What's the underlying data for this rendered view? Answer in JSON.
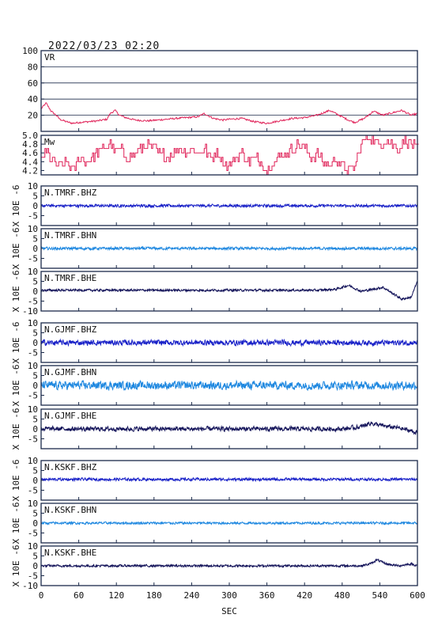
{
  "title": "2022/03/23 02:20",
  "xlabel": "SEC",
  "ylabel": "X 10E -6",
  "colors": {
    "vr": "#e0245a",
    "mw": "#e0245a",
    "bhz": "#1a22c8",
    "bhn": "#1f88e0",
    "bhe": "#14145a",
    "frame": "#1b2a4a"
  },
  "chart_data": {
    "type": "line",
    "x_range": [
      0,
      600
    ],
    "x_ticks": [
      0,
      60,
      120,
      180,
      240,
      300,
      360,
      420,
      480,
      540,
      600
    ],
    "panels": [
      {
        "name": "VR",
        "color_key": "vr",
        "ylim": [
          0,
          100
        ],
        "yticks": [
          20,
          40,
          60,
          80,
          100
        ],
        "ytick_labels": [
          "20",
          "40",
          "60",
          "80",
          "100"
        ],
        "grid": true,
        "x": [
          0,
          8,
          16,
          24,
          30,
          40,
          50,
          60,
          75,
          90,
          105,
          110,
          118,
          125,
          135,
          150,
          170,
          200,
          230,
          250,
          260,
          275,
          290,
          300,
          320,
          340,
          360,
          380,
          400,
          420,
          440,
          450,
          460,
          465,
          480,
          490,
          500,
          515,
          530,
          545,
          560,
          575,
          590,
          600
        ],
        "y": [
          28,
          35,
          25,
          20,
          15,
          12,
          10,
          11,
          12,
          13,
          15,
          22,
          26,
          20,
          17,
          14,
          13,
          15,
          17,
          18,
          22,
          16,
          14,
          15,
          16,
          12,
          10,
          13,
          16,
          17,
          20,
          23,
          26,
          24,
          18,
          14,
          11,
          16,
          25,
          20,
          23,
          26,
          20,
          22
        ]
      },
      {
        "name": "Mw",
        "color_key": "mw",
        "ylim": [
          4.1,
          5.0
        ],
        "yticks": [
          4.2,
          4.4,
          4.6,
          4.8,
          5.0
        ],
        "ytick_labels": [
          "4.2",
          "4.4",
          "4.6",
          "4.8",
          "5.0"
        ],
        "grid": false,
        "x": [
          0,
          10,
          20,
          30,
          40,
          50,
          55,
          60,
          70,
          80,
          90,
          100,
          110,
          120,
          125,
          130,
          140,
          150,
          160,
          170,
          180,
          190,
          200,
          210,
          220,
          230,
          240,
          250,
          260,
          270,
          280,
          290,
          300,
          310,
          320,
          330,
          340,
          350,
          360,
          370,
          380,
          390,
          400,
          410,
          420,
          430,
          440,
          450,
          460,
          470,
          480,
          490,
          500,
          510,
          515,
          520,
          530,
          540,
          550,
          560,
          570,
          580,
          590,
          600
        ],
        "y": [
          4.5,
          4.6,
          4.4,
          4.3,
          4.4,
          4.2,
          4.3,
          4.5,
          4.4,
          4.5,
          4.6,
          4.7,
          4.8,
          4.6,
          4.7,
          4.6,
          4.5,
          4.6,
          4.7,
          4.8,
          4.7,
          4.6,
          4.5,
          4.6,
          4.7,
          4.6,
          4.7,
          4.6,
          4.7,
          4.5,
          4.6,
          4.4,
          4.3,
          4.5,
          4.6,
          4.4,
          4.5,
          4.4,
          4.2,
          4.4,
          4.5,
          4.6,
          4.7,
          4.8,
          4.7,
          4.5,
          4.6,
          4.4,
          4.3,
          4.5,
          4.3,
          4.2,
          4.3,
          4.8,
          4.9,
          5.0,
          4.9,
          4.8,
          4.9,
          4.8,
          4.7,
          4.9,
          4.8,
          4.7
        ]
      },
      {
        "name": "N.TMRF.BHZ",
        "color_key": "bhz",
        "ylim": [
          -10,
          10
        ],
        "yticks": [
          -10,
          -5,
          0,
          5,
          10
        ],
        "ytick_labels": [
          "",
          "-5",
          "0",
          "5",
          "10"
        ],
        "noise": 0.6,
        "x": [
          0,
          600
        ],
        "y": [
          0,
          0
        ]
      },
      {
        "name": "N.TMRF.BHN",
        "color_key": "bhn",
        "ylim": [
          -10,
          10
        ],
        "yticks": [
          -10,
          -5,
          0,
          5,
          10
        ],
        "ytick_labels": [
          "",
          "-5",
          "0",
          "5",
          "10"
        ],
        "noise": 0.6,
        "x": [
          0,
          600
        ],
        "y": [
          0,
          0
        ]
      },
      {
        "name": "N.TMRF.BHE",
        "color_key": "bhe",
        "ylim": [
          -10,
          10
        ],
        "yticks": [
          -10,
          -5,
          0,
          5,
          10
        ],
        "ytick_labels": [
          "-10",
          "-5",
          "0",
          "5",
          "10"
        ],
        "noise": 0.5,
        "x": [
          0,
          440,
          470,
          490,
          510,
          530,
          545,
          560,
          575,
          590,
          600
        ],
        "y": [
          0.5,
          0.5,
          1,
          3,
          0,
          1,
          2,
          -1,
          -4,
          -3,
          5
        ]
      },
      {
        "name": "N.GJMF.BHZ",
        "color_key": "bhz",
        "ylim": [
          -10,
          10
        ],
        "yticks": [
          -10,
          -5,
          0,
          5,
          10
        ],
        "ytick_labels": [
          "",
          "-5",
          "0",
          "5",
          "10"
        ],
        "noise": 1.2,
        "x": [
          0,
          600
        ],
        "y": [
          0,
          0
        ]
      },
      {
        "name": "N.GJMF.BHN",
        "color_key": "bhn",
        "ylim": [
          -10,
          10
        ],
        "yticks": [
          -10,
          -5,
          0,
          5,
          10
        ],
        "ytick_labels": [
          "",
          "-5",
          "0",
          "5",
          "10"
        ],
        "noise": 1.8,
        "x": [
          0,
          600
        ],
        "y": [
          0,
          0
        ]
      },
      {
        "name": "N.GJMF.BHE",
        "color_key": "bhe",
        "ylim": [
          -10,
          10
        ],
        "yticks": [
          -10,
          -5,
          0,
          5,
          10
        ],
        "ytick_labels": [
          "",
          "-5",
          "0",
          "5",
          "10"
        ],
        "noise": 1.0,
        "x": [
          0,
          480,
          510,
          525,
          545,
          570,
          590,
          600
        ],
        "y": [
          0,
          0,
          1,
          3,
          1.5,
          0.5,
          -1,
          -2
        ]
      },
      {
        "name": "N.KSKF.BHZ",
        "color_key": "bhz",
        "ylim": [
          -10,
          10
        ],
        "yticks": [
          -10,
          -5,
          0,
          5,
          10
        ],
        "ytick_labels": [
          "",
          "-5",
          "0",
          "5",
          "10"
        ],
        "noise": 0.6,
        "x": [
          0,
          600
        ],
        "y": [
          0.5,
          0.5
        ]
      },
      {
        "name": "N.KSKF.BHN",
        "color_key": "bhn",
        "ylim": [
          -10,
          10
        ],
        "yticks": [
          -10,
          -5,
          0,
          5,
          10
        ],
        "ytick_labels": [
          "",
          "-5",
          "0",
          "5",
          "10"
        ],
        "noise": 0.5,
        "x": [
          0,
          600
        ],
        "y": [
          0,
          0
        ]
      },
      {
        "name": "N.KSKF.BHE",
        "color_key": "bhe",
        "ylim": [
          -10,
          10
        ],
        "yticks": [
          -10,
          -5,
          0,
          5,
          10
        ],
        "ytick_labels": [
          "-10",
          "-5",
          "0",
          "5",
          "10"
        ],
        "noise": 0.5,
        "x": [
          0,
          510,
          525,
          535,
          550,
          570,
          590,
          600
        ],
        "y": [
          0,
          0,
          1,
          3,
          1,
          0,
          1,
          0
        ]
      }
    ]
  }
}
